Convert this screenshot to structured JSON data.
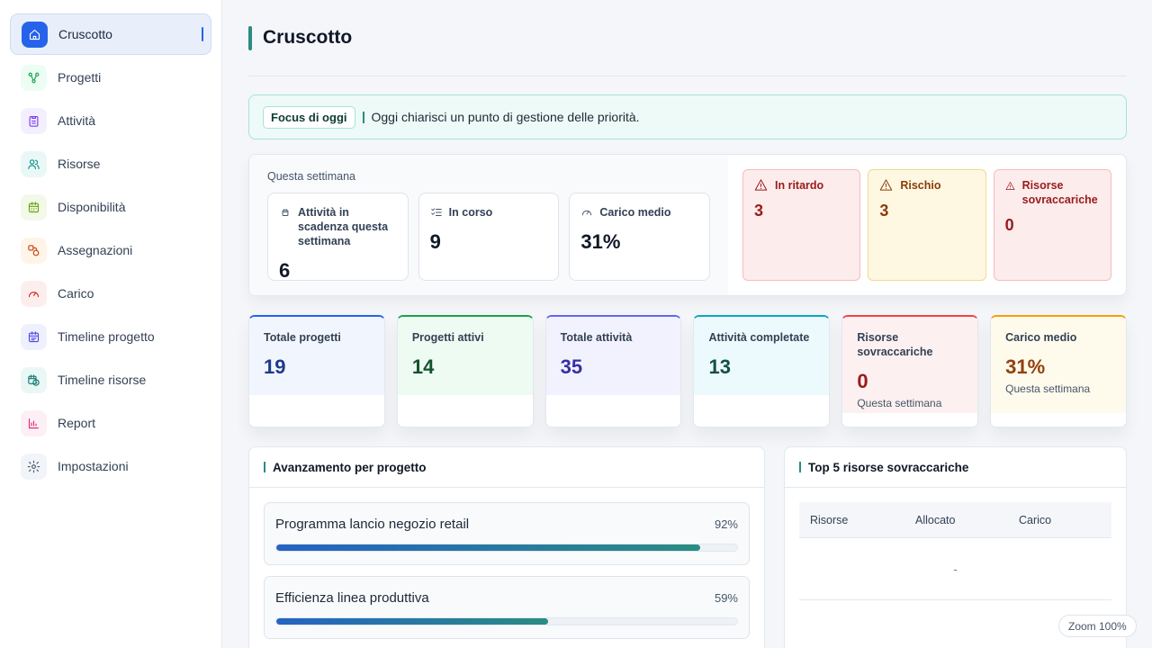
{
  "sidebar": {
    "items": [
      {
        "label": "Cruscotto",
        "icon": "home-icon",
        "color": "#2563eb",
        "bg": "#2563eb",
        "active": true
      },
      {
        "label": "Progetti",
        "icon": "project-nodes-icon",
        "color": "#16a34a",
        "bg": "#ecfdf3"
      },
      {
        "label": "Attività",
        "icon": "clipboard-icon",
        "color": "#7c3aed",
        "bg": "#f3efff"
      },
      {
        "label": "Risorse",
        "icon": "users-icon",
        "color": "#0d9488",
        "bg": "#e9f8f6"
      },
      {
        "label": "Disponibilità",
        "icon": "calendar-icon",
        "color": "#65a30d",
        "bg": "#f3f9e8"
      },
      {
        "label": "Assegnazioni",
        "icon": "assign-icon",
        "color": "#c2410c",
        "bg": "#fff4e8"
      },
      {
        "label": "Carico",
        "icon": "gauge-icon",
        "color": "#dc2626",
        "bg": "#fdeeee"
      },
      {
        "label": "Timeline progetto",
        "icon": "timeline-calendar-icon",
        "color": "#4f46e5",
        "bg": "#eef0fd"
      },
      {
        "label": "Timeline risorse",
        "icon": "calendar-clock-icon",
        "color": "#0f766e",
        "bg": "#e9f7f5"
      },
      {
        "label": "Report",
        "icon": "bar-chart-icon",
        "color": "#db2777",
        "bg": "#fdf0f5"
      },
      {
        "label": "Impostazioni",
        "icon": "gear-icon",
        "color": "#475569",
        "bg": "#f1f4f8"
      }
    ]
  },
  "header": {
    "title": "Cruscotto"
  },
  "focus": {
    "badge": "Focus di oggi",
    "text": "Oggi chiarisci un punto di gestione delle priorità."
  },
  "week": {
    "title": "Questa settimana",
    "cards": [
      {
        "label": "Attività in scadenza questa settimana",
        "value": "6",
        "icon": "calendar-small-icon"
      },
      {
        "label": "In corso",
        "value": "9",
        "icon": "checklist-icon"
      },
      {
        "label": "Carico medio",
        "value": "31%",
        "icon": "gauge-icon"
      }
    ],
    "alerts": [
      {
        "label": "In ritardo",
        "value": "3",
        "tone": "red"
      },
      {
        "label": "Rischio",
        "value": "3",
        "tone": "yellow"
      },
      {
        "label": "Risorse sovraccariche",
        "value": "0",
        "tone": "red"
      }
    ]
  },
  "kpis": [
    {
      "label": "Totale progetti",
      "value": "19",
      "sub": "",
      "accent": "#2563eb",
      "bg": "#f1f6fe",
      "value_color": "#1e3a8a"
    },
    {
      "label": "Progetti attivi",
      "value": "14",
      "sub": "",
      "accent": "#16a34a",
      "bg": "#eefbf3",
      "value_color": "#14532d"
    },
    {
      "label": "Totale attività",
      "value": "35",
      "sub": "",
      "accent": "#6366f1",
      "bg": "#f1f2fe",
      "value_color": "#3730a3"
    },
    {
      "label": "Attività completate",
      "value": "13",
      "sub": "",
      "accent": "#0ea5c4",
      "bg": "#ecfafd",
      "value_color": "#134e4a"
    },
    {
      "label": "Risorse sovraccariche",
      "value": "0",
      "sub": "Questa settimana",
      "accent": "#ef4444",
      "bg": "#fdf0f0",
      "value_color": "#991b1b"
    },
    {
      "label": "Carico medio",
      "value": "31%",
      "sub": "Questa settimana",
      "accent": "#f59e0b",
      "bg": "#fefbec",
      "value_color": "#92400e"
    }
  ],
  "progress_panel": {
    "title": "Avanzamento per progetto",
    "items": [
      {
        "name": "Programma lancio negozio retail",
        "pct_label": "92%",
        "fraction": 0.92
      },
      {
        "name": "Efficienza linea produttiva",
        "pct_label": "59%",
        "fraction": 0.59
      }
    ]
  },
  "top_panel": {
    "title": "Top 5 risorse sovraccariche",
    "columns": [
      "Risorse",
      "Allocato",
      "Carico"
    ],
    "empty": "-"
  },
  "zoom": {
    "label": "Zoom 100%"
  }
}
